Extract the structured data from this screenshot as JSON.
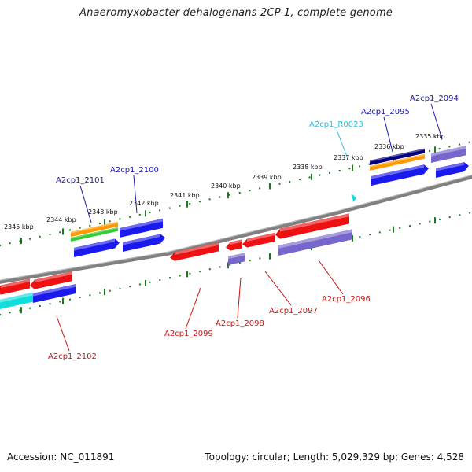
{
  "title": "Anaeromyxobacter dehalogenans 2CP-1, complete genome",
  "footer": {
    "accession": "Accession: NC_011891",
    "summary": "Topology: circular; Length: 5,029,329 bp; Genes: 4,528"
  },
  "colors": {
    "backbone": "#808080",
    "ticks": "#1a7a1a",
    "forward_label": "#1a1aaa",
    "reverse_label": "#cc1111",
    "rna_label": "#33bbdd",
    "gene_blue": "#1a1aee",
    "gene_red": "#ee1111",
    "gene_purple": "#7766cc",
    "gene_orange": "#ff9900",
    "gene_green": "#33cc33",
    "gene_navy": "#000080",
    "gene_cyan": "#11dddd"
  },
  "tick_labels": [
    "2345 kbp",
    "2344 kbp",
    "2343 kbp",
    "2342 kbp",
    "2341 kbp",
    "2340 kbp",
    "2339 kbp",
    "2338 kbp",
    "2337 kbp",
    "2336 kbp",
    "2335 kbp"
  ],
  "gene_labels": [
    {
      "text": "A2cp1_2094",
      "strand": "forward"
    },
    {
      "text": "A2cp1_2095",
      "strand": "forward"
    },
    {
      "text": "A2cp1_R0023",
      "strand": "rna"
    },
    {
      "text": "A2cp1_2100",
      "strand": "forward"
    },
    {
      "text": "A2cp1_2101",
      "strand": "forward"
    },
    {
      "text": "A2cp1_2096",
      "strand": "reverse"
    },
    {
      "text": "A2cp1_2097",
      "strand": "reverse"
    },
    {
      "text": "A2cp1_2098",
      "strand": "reverse"
    },
    {
      "text": "A2cp1_2099",
      "strand": "reverse"
    },
    {
      "text": "A2cp1_2102",
      "strand": "reverse"
    }
  ]
}
